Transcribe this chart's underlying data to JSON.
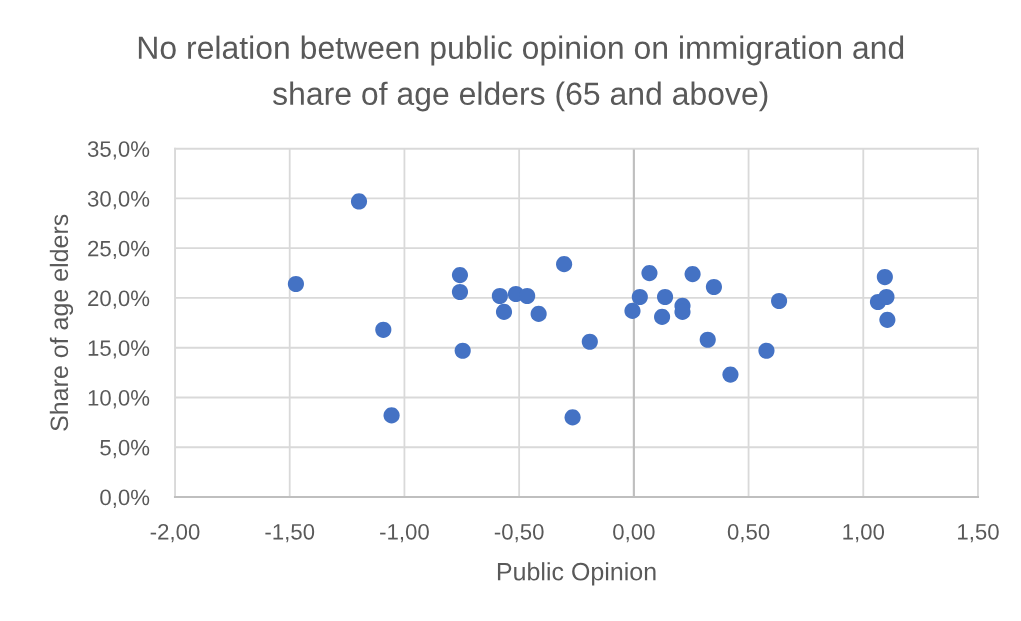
{
  "chart_data": {
    "type": "scatter",
    "title": "No relation between public opinion on immigration and share of age elders (65 and above)",
    "xlabel": "Public Opinion",
    "ylabel": "Share of age elders",
    "series": [
      {
        "color": "#4472c4",
        "x": [
          -1.198,
          -1.473,
          -0.758,
          -0.758,
          -1.092,
          -0.746,
          -1.056,
          -0.584,
          -0.514,
          -0.465,
          -0.566,
          -0.415,
          -0.304,
          -0.192,
          -0.267,
          -0.006,
          0.026,
          0.068,
          0.136,
          0.123,
          0.212,
          0.212,
          0.256,
          0.349,
          0.322,
          0.421,
          0.578,
          0.633,
          1.094,
          1.064,
          1.101,
          1.105
        ],
        "values": [
          29.7,
          21.4,
          22.3,
          20.6,
          16.8,
          14.7,
          8.2,
          20.2,
          20.4,
          20.2,
          18.6,
          18.4,
          23.4,
          15.6,
          8.0,
          18.7,
          20.1,
          22.5,
          20.1,
          18.1,
          19.2,
          18.6,
          22.4,
          21.1,
          15.8,
          12.3,
          14.7,
          19.7,
          22.1,
          19.6,
          20.1,
          17.8
        ]
      }
    ],
    "xlim": [
      -2,
      1.5
    ],
    "xticks": [
      {
        "value": -2,
        "label": "-2,00"
      },
      {
        "value": -1.5,
        "label": "-1,50"
      },
      {
        "value": -1,
        "label": "-1,00"
      },
      {
        "value": -0.5,
        "label": "-0,50"
      },
      {
        "value": 0,
        "label": "0,00"
      },
      {
        "value": 0.5,
        "label": "0,50"
      },
      {
        "value": 1,
        "label": "1,00"
      },
      {
        "value": 1.5,
        "label": "1,50"
      }
    ],
    "ylim": [
      0,
      35
    ],
    "yticks": [
      {
        "value": 0,
        "label": "0,0%"
      },
      {
        "value": 5,
        "label": "5,0%"
      },
      {
        "value": 10,
        "label": "10,0%"
      },
      {
        "value": 15,
        "label": "15,0%"
      },
      {
        "value": 20,
        "label": "20,0%"
      },
      {
        "value": 25,
        "label": "25,0%"
      },
      {
        "value": 30,
        "label": "30,0%"
      },
      {
        "value": 35,
        "label": "35,0%"
      }
    ],
    "ref_lines": [
      {
        "axis": "x",
        "value": 0,
        "color": "#bfbfbf"
      }
    ],
    "grid": true,
    "marker": "circle"
  }
}
